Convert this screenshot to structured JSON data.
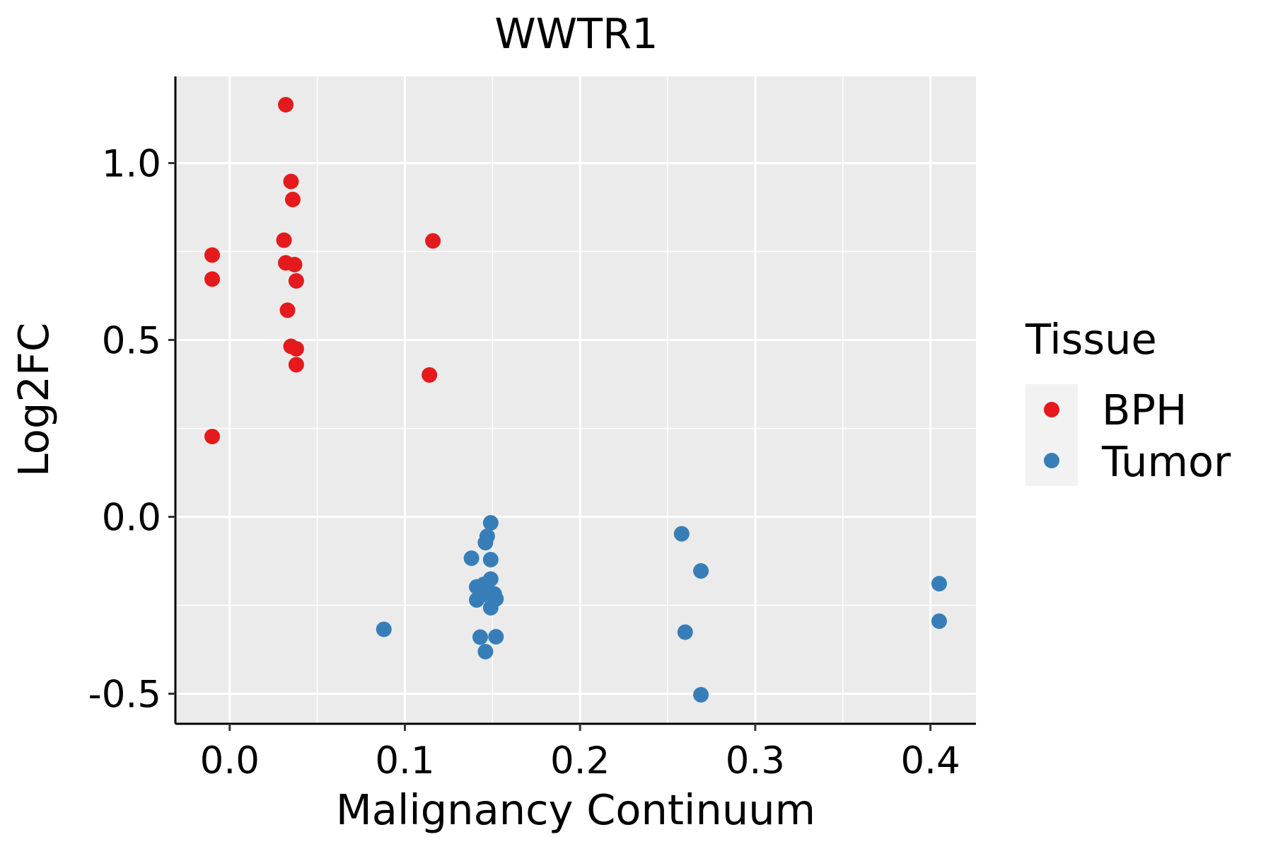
{
  "chart_data": {
    "type": "scatter",
    "title": "WWTR1",
    "xlabel": "Malignancy Continuum",
    "ylabel": "Log2FC",
    "xlim": [
      -0.031,
      0.426
    ],
    "ylim": [
      -0.585,
      1.245
    ],
    "x_ticks": [
      0.0,
      0.1,
      0.2,
      0.3,
      0.4
    ],
    "x_tick_labels": [
      "0.0",
      "0.1",
      "0.2",
      "0.3",
      "0.4"
    ],
    "y_ticks": [
      -0.5,
      0.0,
      0.5,
      1.0
    ],
    "y_tick_labels": [
      "-0.5",
      "0.0",
      "0.5",
      "1.0"
    ],
    "grid": true,
    "legend": {
      "title": "Tissue",
      "position": "right"
    },
    "series": [
      {
        "name": "BPH",
        "color": "#e41a1c",
        "points": [
          [
            0.032,
            1.165
          ],
          [
            0.035,
            0.948
          ],
          [
            0.036,
            0.897
          ],
          [
            0.031,
            0.782
          ],
          [
            0.032,
            0.718
          ],
          [
            0.037,
            0.713
          ],
          [
            0.038,
            0.667
          ],
          [
            0.033,
            0.584
          ],
          [
            0.035,
            0.482
          ],
          [
            0.038,
            0.475
          ],
          [
            0.038,
            0.43
          ],
          [
            -0.01,
            0.74
          ],
          [
            -0.01,
            0.672
          ],
          [
            -0.01,
            0.227
          ],
          [
            0.116,
            0.78
          ],
          [
            0.114,
            0.401
          ]
        ]
      },
      {
        "name": "Tumor",
        "color": "#377eb8",
        "points": [
          [
            0.149,
            -0.017
          ],
          [
            0.147,
            -0.055
          ],
          [
            0.146,
            -0.073
          ],
          [
            0.138,
            -0.117
          ],
          [
            0.149,
            -0.121
          ],
          [
            0.149,
            -0.176
          ],
          [
            0.145,
            -0.191
          ],
          [
            0.141,
            -0.198
          ],
          [
            0.148,
            -0.215
          ],
          [
            0.151,
            -0.218
          ],
          [
            0.144,
            -0.221
          ],
          [
            0.152,
            -0.232
          ],
          [
            0.141,
            -0.235
          ],
          [
            0.149,
            -0.257
          ],
          [
            0.088,
            -0.318
          ],
          [
            0.143,
            -0.34
          ],
          [
            0.152,
            -0.339
          ],
          [
            0.146,
            -0.381
          ],
          [
            0.258,
            -0.048
          ],
          [
            0.269,
            -0.153
          ],
          [
            0.26,
            -0.326
          ],
          [
            0.269,
            -0.503
          ],
          [
            0.405,
            -0.189
          ],
          [
            0.405,
            -0.295
          ]
        ]
      }
    ]
  }
}
